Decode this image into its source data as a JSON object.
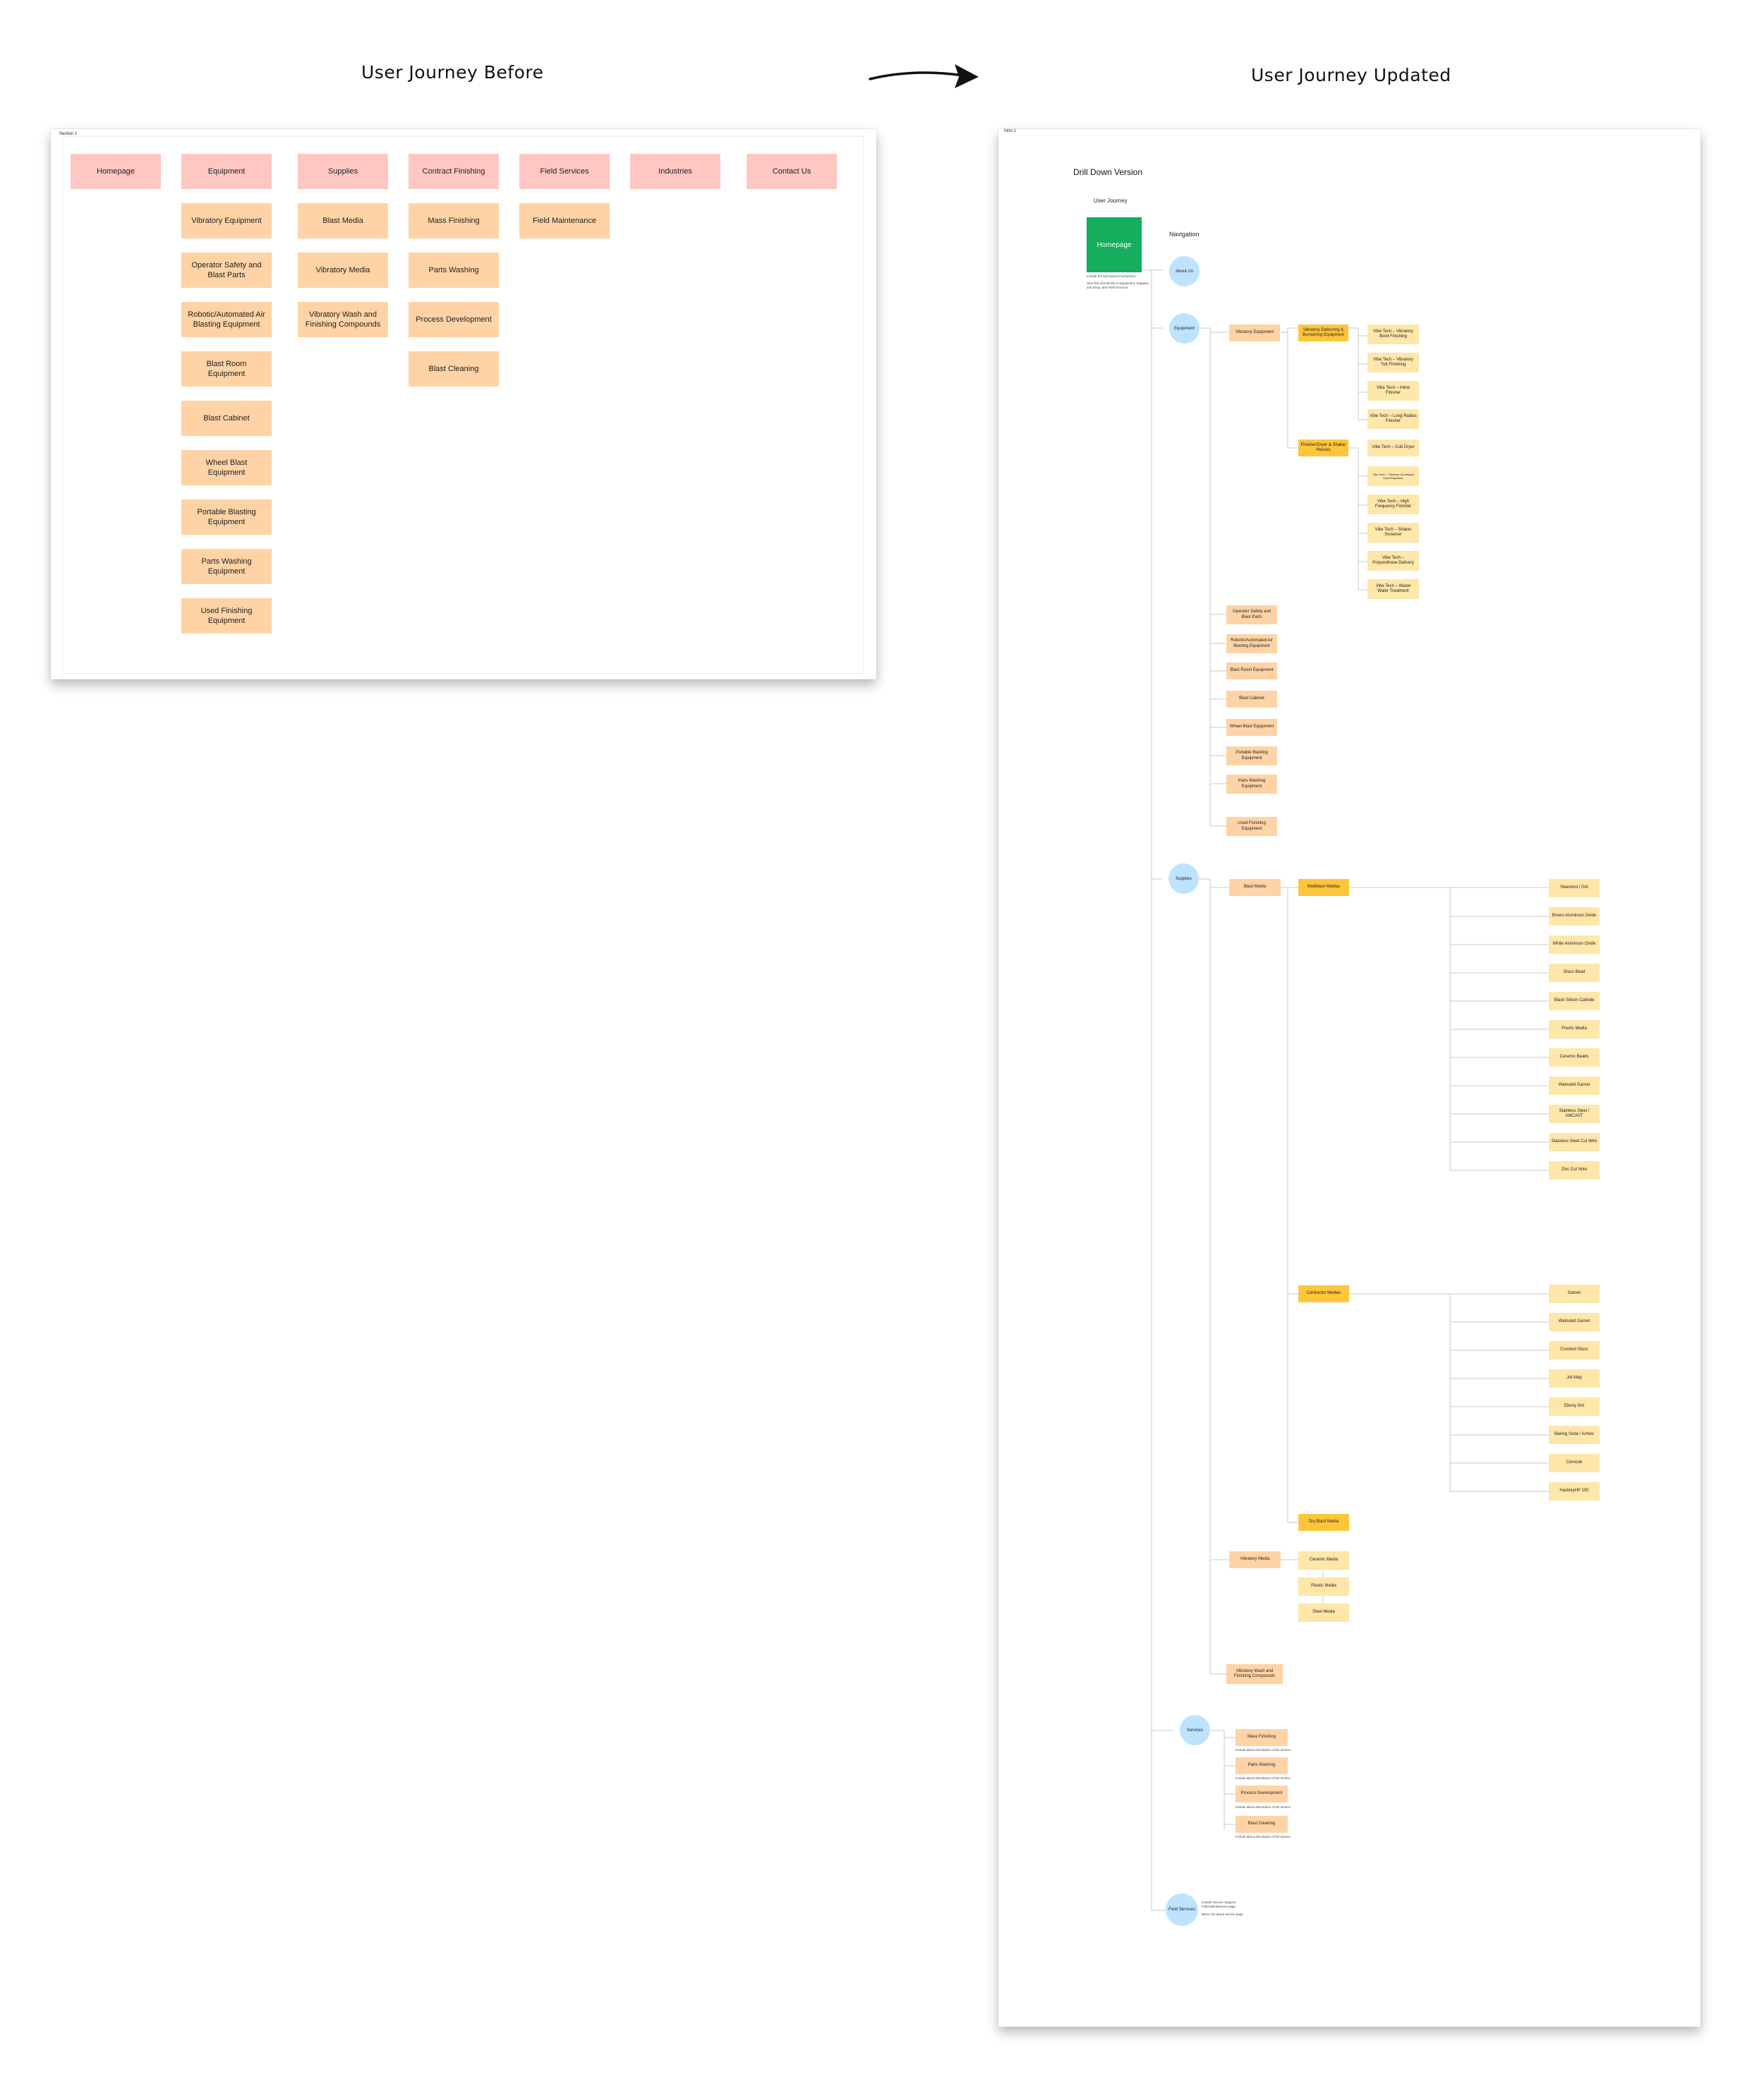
{
  "headings": {
    "before": "User Journey Before",
    "updated": "User Journey Updated"
  },
  "before": {
    "section_label": "Section 1",
    "columns": [
      {
        "header": "Homepage",
        "items": []
      },
      {
        "header": "Equipment",
        "items": [
          "Vibratory Equipment",
          "Operator Safety and Blast Parts",
          "Robotic/Automated Air Blasting Equipment",
          "Blast Room Equipment",
          "Blast Cabinet",
          "Wheel Blast Equipment",
          "Portable Blasting Equipment",
          "Parts Washing Equipment",
          "Used Finishing Equipment"
        ]
      },
      {
        "header": "Supplies",
        "items": [
          "Blast Media",
          "Vibratory Media",
          "Vibratory Wash and Finishing Compounds"
        ]
      },
      {
        "header": "Contract Finishing",
        "items": [
          "Mass Finishing",
          "Parts Washing",
          "Process Development",
          "Blast Cleaning"
        ]
      },
      {
        "header": "Field Services",
        "items": [
          "Field Maintenance"
        ]
      },
      {
        "header": "Industries",
        "items": []
      },
      {
        "header": "Contact Us",
        "items": []
      }
    ]
  },
  "updated": {
    "section_label": "Intro 1",
    "title": "Drill Down Version",
    "user_journey_label": "User Journey",
    "navigation_label": "Navigation",
    "homepage": {
      "label": "Homepage",
      "note1": "Include the full featured home/hero",
      "note2": "Hero link should link to Equipment, Supplies, Job Shop, and Field Services"
    },
    "nav": {
      "about": "About Us",
      "equipment": "Equipment",
      "supplies": "Supplies",
      "services": "Services",
      "field": "Field Services"
    },
    "equipment": {
      "vibratory": "Vibratory Equipment",
      "deburr": "Vibratory Deburring & Burnishing Equipment",
      "deburr_items": [
        "Vibe Tech – Vibratory Bowl Finishing",
        "Vibe Tech – Vibratory Tub Finishing",
        "Vibe Tech – Inline Finisher",
        "Vibe Tech – Long Radius Finisher"
      ],
      "finisher": "Finisher/Dryer & Shaker Houses",
      "finisher_items": [
        "Vibe Tech – Cob Dryer",
        "Vibe Tech – Vibratory Centrifugal Dryer/Separator",
        "Vibe Tech – High Frequency Finisher",
        "Vibe Tech – Shaker Screener",
        "Vibe Tech – Polyurethane Delivery",
        "Vibe Tech – Waste Water Treatment"
      ],
      "others": [
        "Operator Safety and Blast Parts",
        "Robotic/Automated Air Blasting Equipment",
        "Blast Room Equipment",
        "Blast Cabinet",
        "Wheel Blast Equipment",
        "Portable Blasting Equipment",
        "Parts Washing Equipment",
        "Used Finishing Equipment"
      ]
    },
    "supplies": {
      "blast_media": "Blast Media",
      "multiblast": "Multiblast Medias",
      "multiblast_items": [
        "Steelshot / Grit",
        "Brown Aluminum Oxide",
        "White Aluminum Oxide",
        "Glass Bead",
        "Black Silicon Carbide",
        "Plastic Media",
        "Ceramic Beads",
        "Walnutell Garnet",
        "Stainless Steel / AMCAST",
        "Stainless Steel Cut Wire",
        "Zinc Cut Wire"
      ],
      "contractor": "Contractor Medias",
      "contractor_items": [
        "Garnet",
        "Walnutell Garnet",
        "Crushed Glass",
        "Jet Mag",
        "Ebony Grit",
        "Baking Soda / Armex",
        "Corncob",
        "HackleyHP 150"
      ],
      "dry_ice": "Dry Blast Media",
      "vibratory_media": "Vibratory Media",
      "vibratory_items": [
        "Ceramic Media",
        "Plastic Media",
        "Steel Media"
      ],
      "compounds": "Vibratory Wash and Finishing Compounds"
    },
    "services": {
      "items": [
        "Mass Finishing",
        "Parts Washing",
        "Process Development",
        "Blast Cleaning"
      ],
      "note": "Include about description of the service"
    },
    "field": {
      "note1": "Include Service Support, Field Maintenance page",
      "note2": "Basic info about service page"
    }
  }
}
